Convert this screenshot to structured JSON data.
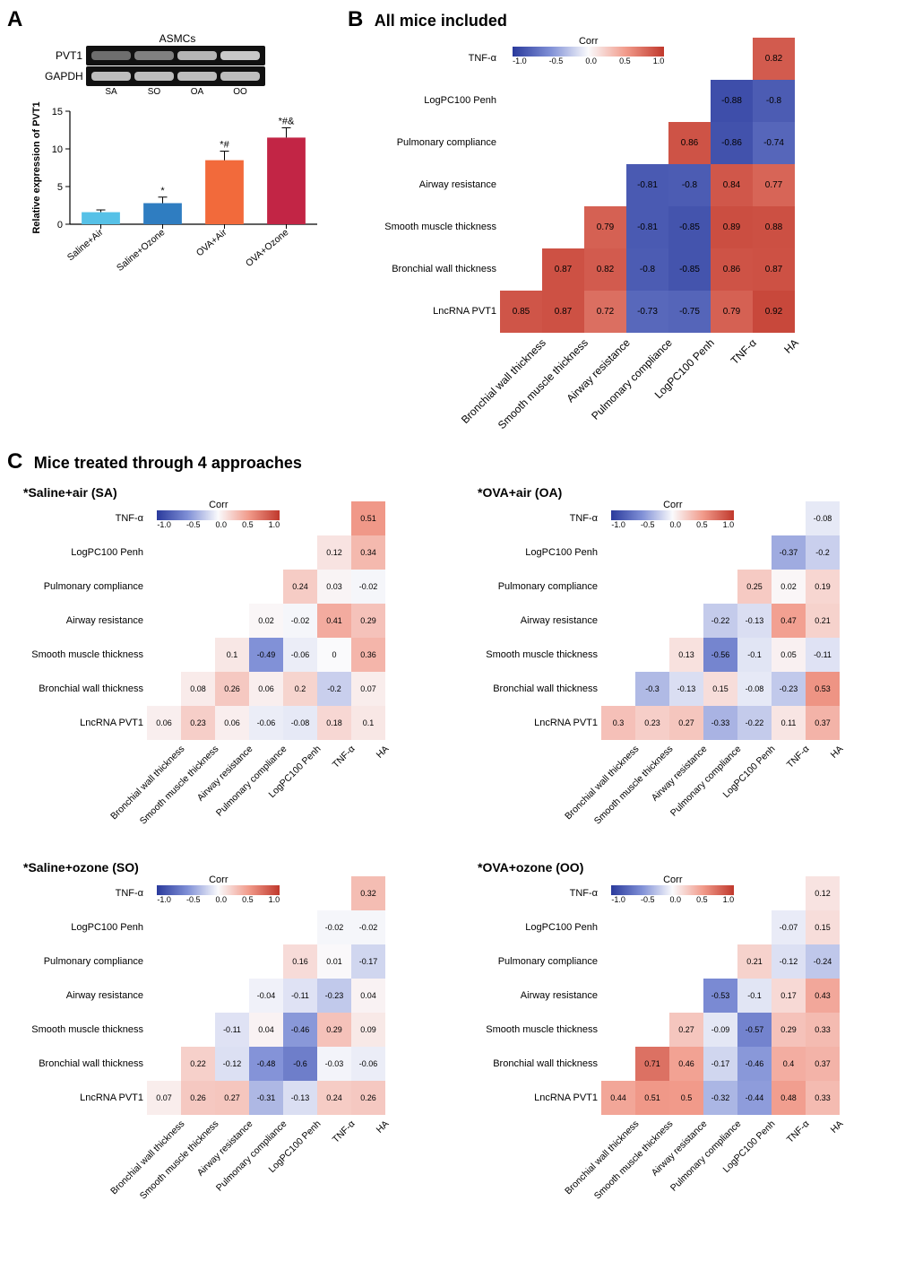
{
  "panelA": {
    "label": "A",
    "gel_header": "ASMCs",
    "rows": [
      "PVT1",
      "GAPDH"
    ],
    "lane_labels": [
      "SA",
      "SO",
      "OA",
      "OO"
    ],
    "pvt1_opacity": [
      0.5,
      0.6,
      0.88,
      0.98
    ],
    "gapdh_opacity": [
      0.92,
      0.92,
      0.92,
      0.92
    ],
    "bar": {
      "y_label": "Relative expression of PVT1",
      "y_ticks": [
        0,
        5,
        10,
        15
      ],
      "categories": [
        "Saline+Air",
        "Saline+Ozone",
        "OVA+Air",
        "OVA+Ozone"
      ],
      "values": [
        1.6,
        2.8,
        8.5,
        11.5
      ],
      "errors": [
        0.3,
        0.8,
        1.2,
        1.3
      ],
      "annotations": [
        "",
        "*",
        "*#",
        "*#&"
      ],
      "colors": [
        "#56c1e7",
        "#2f7dc1",
        "#f26a3b",
        "#c22545"
      ]
    }
  },
  "vars": [
    "Bronchial wall thickness",
    "Smooth muscle thickness",
    "Airway resistance",
    "Pulmonary compliance",
    "LogPC100 Penh",
    "TNF-α",
    "HA"
  ],
  "row_labels_top_to_bottom": [
    "TNF-α",
    "LogPC100 Penh",
    "Pulmonary compliance",
    "Airway resistance",
    "Smooth muscle thickness",
    "Bronchial wall thickness",
    "LncRNA PVT1"
  ],
  "legend": {
    "title": "Corr",
    "ticks": [
      "-1.0",
      "-0.5",
      "0.0",
      "0.5",
      "1.0"
    ],
    "stops": [
      "#2a3a9c",
      "#7f8fd6",
      "#fafafc",
      "#f19a8a",
      "#c0382c"
    ]
  },
  "panelB": {
    "label": "B",
    "title": "All mice included",
    "M": {
      "TNF-α": {
        "HA": 0.82
      },
      "LogPC100 Penh": {
        "TNF-α": -0.88,
        "HA": -0.8
      },
      "Pulmonary compliance": {
        "LogPC100 Penh": 0.86,
        "TNF-α": -0.86,
        "HA": -0.74
      },
      "Airway resistance": {
        "Pulmonary compliance": -0.81,
        "LogPC100 Penh": -0.8,
        "TNF-α": 0.84,
        "HA": 0.77
      },
      "Smooth muscle thickness": {
        "Airway resistance": 0.79,
        "Pulmonary compliance": -0.81,
        "LogPC100 Penh": -0.85,
        "TNF-α": 0.89,
        "HA": 0.88
      },
      "Bronchial wall thickness": {
        "Smooth muscle thickness": 0.87,
        "Airway resistance": 0.82,
        "Pulmonary compliance": -0.8,
        "LogPC100 Penh": -0.85,
        "TNF-α": 0.86,
        "HA": 0.87
      },
      "LncRNA PVT1": {
        "Bronchial wall thickness": 0.85,
        "Smooth muscle thickness": 0.87,
        "Airway resistance": 0.72,
        "Pulmonary compliance": -0.73,
        "LogPC100 Penh": -0.75,
        "TNF-α": 0.79,
        "HA": 0.92
      }
    }
  },
  "panelC": {
    "label": "C",
    "title": "Mice treated through 4 approaches",
    "subs": [
      {
        "title": "*Saline+air (SA)",
        "M": {
          "TNF-α": {
            "HA": 0.51
          },
          "LogPC100 Penh": {
            "TNF-α": 0.12,
            "HA": 0.34
          },
          "Pulmonary compliance": {
            "LogPC100 Penh": 0.24,
            "TNF-α": 0.03,
            "HA": -0.02
          },
          "Airway resistance": {
            "Pulmonary compliance": 0.02,
            "LogPC100 Penh": -0.02,
            "TNF-α": 0.41,
            "HA": 0.29
          },
          "Smooth muscle thickness": {
            "Airway resistance": 0.1,
            "Pulmonary compliance": -0.49,
            "LogPC100 Penh": -0.06,
            "TNF-α": 0,
            "HA": 0.36
          },
          "Bronchial wall thickness": {
            "Smooth muscle thickness": 0.08,
            "Airway resistance": 0.26,
            "Pulmonary compliance": 0.06,
            "LogPC100 Penh": 0.2,
            "TNF-α": -0.2,
            "HA": 0.07
          },
          "LncRNA PVT1": {
            "Bronchial wall thickness": 0.06,
            "Smooth muscle thickness": 0.23,
            "Airway resistance": 0.06,
            "Pulmonary compliance": -0.06,
            "LogPC100 Penh": -0.08,
            "TNF-α": 0.18,
            "HA": 0.1
          }
        }
      },
      {
        "title": "*OVA+air (OA)",
        "M": {
          "TNF-α": {
            "HA": -0.08
          },
          "LogPC100 Penh": {
            "TNF-α": -0.37,
            "HA": -0.2
          },
          "Pulmonary compliance": {
            "LogPC100 Penh": 0.25,
            "TNF-α": 0.02,
            "HA": 0.19
          },
          "Airway resistance": {
            "Pulmonary compliance": -0.22,
            "LogPC100 Penh": -0.13,
            "TNF-α": 0.47,
            "HA": 0.21
          },
          "Smooth muscle thickness": {
            "Airway resistance": 0.13,
            "Pulmonary compliance": -0.56,
            "LogPC100 Penh": -0.1,
            "TNF-α": 0.05,
            "HA": -0.11
          },
          "Bronchial wall thickness": {
            "Smooth muscle thickness": -0.3,
            "Airway resistance": -0.13,
            "Pulmonary compliance": 0.15,
            "LogPC100 Penh": -0.08,
            "TNF-α": -0.23,
            "HA": 0.53
          },
          "LncRNA PVT1": {
            "Bronchial wall thickness": 0.3,
            "Smooth muscle thickness": 0.23,
            "Airway resistance": 0.27,
            "Pulmonary compliance": -0.33,
            "LogPC100 Penh": -0.22,
            "TNF-α": 0.11,
            "HA": 0.37
          }
        }
      },
      {
        "title": "*Saline+ozone (SO)",
        "M": {
          "TNF-α": {
            "HA": 0.32
          },
          "LogPC100 Penh": {
            "TNF-α": -0.02,
            "HA": -0.02
          },
          "Pulmonary compliance": {
            "LogPC100 Penh": 0.16,
            "TNF-α": 0.01,
            "HA": -0.17
          },
          "Airway resistance": {
            "Pulmonary compliance": -0.04,
            "LogPC100 Penh": -0.11,
            "TNF-α": -0.23,
            "HA": 0.04
          },
          "Smooth muscle thickness": {
            "Airway resistance": -0.11,
            "Pulmonary compliance": 0.04,
            "LogPC100 Penh": -0.46,
            "TNF-α": 0.29,
            "HA": 0.09
          },
          "Bronchial wall thickness": {
            "Smooth muscle thickness": 0.22,
            "Airway resistance": -0.12,
            "Pulmonary compliance": -0.48,
            "LogPC100 Penh": -0.6,
            "TNF-α": -0.03,
            "HA": -0.06
          },
          "LncRNA PVT1": {
            "Bronchial wall thickness": 0.07,
            "Smooth muscle thickness": 0.26,
            "Airway resistance": 0.27,
            "Pulmonary compliance": -0.31,
            "LogPC100 Penh": -0.13,
            "TNF-α": 0.24,
            "HA": 0.26
          }
        }
      },
      {
        "title": "*OVA+ozone (OO)",
        "M": {
          "TNF-α": {
            "HA": 0.12
          },
          "LogPC100 Penh": {
            "TNF-α": -0.07,
            "HA": 0.15
          },
          "Pulmonary compliance": {
            "LogPC100 Penh": 0.21,
            "TNF-α": -0.12,
            "HA": -0.24
          },
          "Airway resistance": {
            "Pulmonary compliance": -0.53,
            "LogPC100 Penh": -0.1,
            "TNF-α": 0.17,
            "HA": 0.43
          },
          "Smooth muscle thickness": {
            "Airway resistance": 0.27,
            "Pulmonary compliance": -0.09,
            "LogPC100 Penh": -0.57,
            "TNF-α": 0.29,
            "HA": 0.33
          },
          "Bronchial wall thickness": {
            "Smooth muscle thickness": 0.71,
            "Airway resistance": 0.46,
            "Pulmonary compliance": -0.17,
            "LogPC100 Penh": -0.46,
            "TNF-α": 0.4,
            "HA": 0.37
          },
          "LncRNA PVT1": {
            "Bronchial wall thickness": 0.44,
            "Smooth muscle thickness": 0.51,
            "Airway resistance": 0.5,
            "Pulmonary compliance": -0.32,
            "LogPC100 Penh": -0.44,
            "TNF-α": 0.48,
            "HA": 0.33
          }
        }
      }
    ]
  }
}
